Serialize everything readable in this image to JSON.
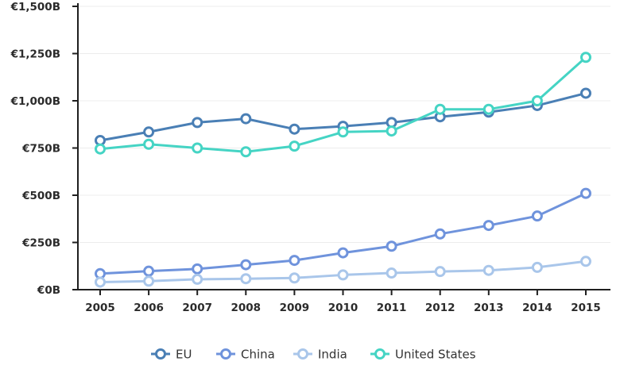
{
  "chart_data": {
    "type": "line",
    "title": "",
    "xlabel": "",
    "ylabel": "",
    "x": [
      "2005",
      "2006",
      "2007",
      "2008",
      "2009",
      "2010",
      "2011",
      "2012",
      "2013",
      "2014",
      "2015"
    ],
    "ylim": [
      0,
      1500
    ],
    "yticks": [
      0,
      250,
      500,
      750,
      1000,
      1250,
      1500
    ],
    "ytick_labels": [
      "€0B",
      "€250B",
      "€500B",
      "€750B",
      "€1,000B",
      "€1,250B",
      "€1,500B"
    ],
    "grid": true,
    "legend_position": "bottom-center",
    "series": [
      {
        "name": "EU",
        "color": "#4a7fb5",
        "values": [
          790,
          835,
          885,
          905,
          850,
          865,
          885,
          915,
          940,
          975,
          1040
        ]
      },
      {
        "name": "China",
        "color": "#6f93dc",
        "values": [
          85,
          98,
          110,
          132,
          155,
          195,
          230,
          295,
          340,
          390,
          510
        ]
      },
      {
        "name": "India",
        "color": "#a9c6ea",
        "values": [
          40,
          45,
          55,
          58,
          62,
          78,
          88,
          96,
          102,
          118,
          150
        ]
      },
      {
        "name": "United States",
        "color": "#45d4c4",
        "values": [
          745,
          770,
          750,
          730,
          760,
          835,
          840,
          955,
          955,
          1000,
          1230
        ]
      }
    ]
  }
}
